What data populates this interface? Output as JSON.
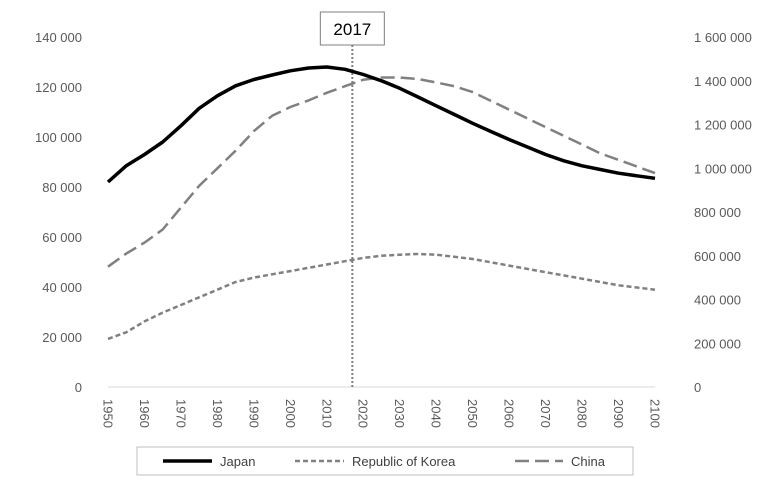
{
  "chart_data": {
    "type": "line",
    "x": [
      1950,
      1955,
      1960,
      1965,
      1970,
      1975,
      1980,
      1985,
      1990,
      1995,
      2000,
      2005,
      2010,
      2015,
      2020,
      2025,
      2030,
      2035,
      2040,
      2045,
      2050,
      2055,
      2060,
      2065,
      2070,
      2075,
      2080,
      2085,
      2090,
      2095,
      2100
    ],
    "x_ticks": [
      "1950",
      "1960",
      "1970",
      "1980",
      "1990",
      "2000",
      "2010",
      "2020",
      "2030",
      "2040",
      "2050",
      "2060",
      "2070",
      "2080",
      "2090",
      "2100"
    ],
    "y_left_ticks": [
      "0",
      "20 000",
      "40 000",
      "60 000",
      "80 000",
      "100 000",
      "120 000",
      "140 000"
    ],
    "y_right_ticks": [
      "0",
      "200 000",
      "400 000",
      "600 000",
      "800 000",
      "1 000 000",
      "1 200 000",
      "1 400 000",
      "1 600 000"
    ],
    "ylim_left": [
      0,
      140000
    ],
    "ylim_right": [
      0,
      1600000
    ],
    "grid": false,
    "legend_position": "bottom",
    "series": [
      {
        "name": "Japan",
        "axis": "left",
        "style": "solid",
        "color": "#000000",
        "values": [
          82000,
          88500,
          93000,
          98000,
          104500,
          111500,
          116500,
          120500,
          123000,
          124800,
          126500,
          127600,
          128000,
          127100,
          125000,
          122500,
          119500,
          116000,
          112500,
          109000,
          105500,
          102200,
          99000,
          96000,
          93000,
          90500,
          88500,
          87000,
          85500,
          84500,
          83500
        ]
      },
      {
        "name": "Republic of Korea",
        "axis": "right",
        "style": "dotted",
        "color": "#808080",
        "values": [
          220000,
          250000,
          300000,
          340000,
          375000,
          410000,
          445000,
          480000,
          500000,
          515000,
          530000,
          545000,
          560000,
          575000,
          590000,
          600000,
          605000,
          608000,
          605000,
          595000,
          585000,
          570000,
          555000,
          540000,
          525000,
          510000,
          495000,
          480000,
          465000,
          455000,
          445000
        ]
      },
      {
        "name": "China",
        "axis": "right",
        "style": "dashed",
        "color": "#808080",
        "values": [
          550000,
          610000,
          660000,
          720000,
          820000,
          920000,
          1000000,
          1080000,
          1170000,
          1240000,
          1280000,
          1310000,
          1345000,
          1375000,
          1405000,
          1415000,
          1415000,
          1408000,
          1392000,
          1375000,
          1348000,
          1308000,
          1268000,
          1228000,
          1188000,
          1148000,
          1108000,
          1068000,
          1038000,
          1008000,
          978000
        ]
      }
    ],
    "annotations": [
      {
        "label": "2017",
        "x": 2017
      }
    ]
  }
}
